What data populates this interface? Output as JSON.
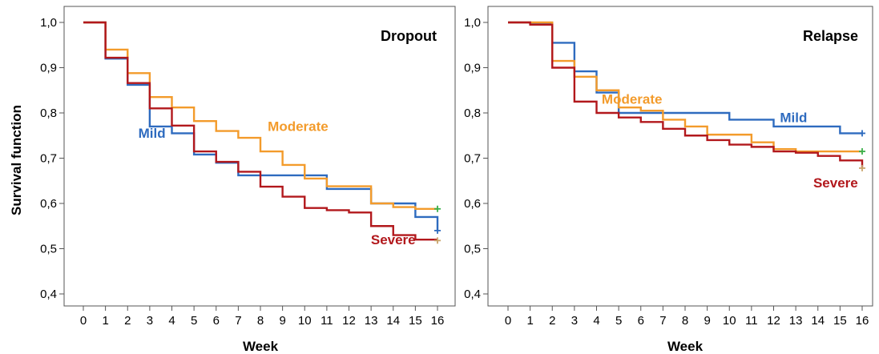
{
  "figure": {
    "ylabel": "Survival function"
  },
  "chart_data": [
    {
      "type": "line",
      "title": "Dropout",
      "xlabel": "Week",
      "ylabel": "Survival function",
      "xlim": [
        0,
        16
      ],
      "ylim": [
        0.4,
        1.0
      ],
      "x_ticks": [
        "0",
        "1",
        "2",
        "3",
        "4",
        "5",
        "6",
        "7",
        "8",
        "9",
        "10",
        "11",
        "12",
        "13",
        "14",
        "15",
        "16"
      ],
      "y_ticks": [
        "0,4",
        "0,5",
        "0,6",
        "0,7",
        "0,8",
        "0,9",
        "1,0"
      ],
      "y_tick_values": [
        0.4,
        0.5,
        0.6,
        0.7,
        0.8,
        0.9,
        1.0
      ],
      "grid": false,
      "series": [
        {
          "name": "Mild",
          "color": "#2e6bbf",
          "x": [
            0,
            1,
            2,
            3,
            4,
            5,
            6,
            7,
            8,
            9,
            10,
            11,
            12,
            13,
            14,
            15,
            16
          ],
          "y": [
            1.0,
            0.92,
            0.862,
            0.77,
            0.755,
            0.708,
            0.69,
            0.662,
            0.662,
            0.662,
            0.662,
            0.632,
            0.632,
            0.6,
            0.6,
            0.57,
            0.54
          ],
          "censor": {
            "x": 16,
            "y": 0.54,
            "color": "#2e6bbf"
          }
        },
        {
          "name": "Moderate",
          "color": "#f39b2b",
          "x": [
            0,
            1,
            2,
            3,
            4,
            5,
            6,
            7,
            8,
            9,
            10,
            11,
            12,
            13,
            14,
            15,
            16
          ],
          "y": [
            1.0,
            0.94,
            0.888,
            0.835,
            0.812,
            0.782,
            0.76,
            0.745,
            0.715,
            0.685,
            0.655,
            0.638,
            0.638,
            0.6,
            0.592,
            0.588,
            0.588
          ],
          "censor": {
            "x": 16,
            "y": 0.588,
            "color": "#3ab04a"
          }
        },
        {
          "name": "Severe",
          "color": "#b2181c",
          "x": [
            0,
            1,
            2,
            3,
            4,
            5,
            6,
            7,
            8,
            9,
            10,
            11,
            12,
            13,
            14,
            15,
            16
          ],
          "y": [
            1.0,
            0.922,
            0.866,
            0.81,
            0.772,
            0.715,
            0.692,
            0.67,
            0.637,
            0.615,
            0.59,
            0.585,
            0.58,
            0.55,
            0.53,
            0.52,
            0.52
          ],
          "censor": {
            "x": 16,
            "y": 0.518,
            "color": "#c9a46b"
          }
        }
      ],
      "annotations": [
        {
          "text": "Mild",
          "series": "Mild",
          "x": 3.1,
          "y": 0.745
        },
        {
          "text": "Moderate",
          "series": "Moderate",
          "x": 9.7,
          "y": 0.76
        },
        {
          "text": "Severe",
          "series": "Severe",
          "x": 14.0,
          "y": 0.51
        }
      ]
    },
    {
      "type": "line",
      "title": "Relapse",
      "xlabel": "Week",
      "ylabel": "",
      "xlim": [
        0,
        16
      ],
      "ylim": [
        0.4,
        1.0
      ],
      "x_ticks": [
        "0",
        "1",
        "2",
        "3",
        "4",
        "5",
        "6",
        "7",
        "8",
        "9",
        "10",
        "11",
        "12",
        "13",
        "14",
        "15",
        "16"
      ],
      "y_ticks": [
        "0,4",
        "0,5",
        "0,6",
        "0,7",
        "0,8",
        "0,9",
        "1,0"
      ],
      "y_tick_values": [
        0.4,
        0.5,
        0.6,
        0.7,
        0.8,
        0.9,
        1.0
      ],
      "grid": false,
      "series": [
        {
          "name": "Mild",
          "color": "#2e6bbf",
          "x": [
            0,
            1,
            2,
            3,
            4,
            5,
            6,
            7,
            8,
            9,
            10,
            11,
            12,
            13,
            14,
            15,
            16
          ],
          "y": [
            1.0,
            0.998,
            0.955,
            0.892,
            0.845,
            0.8,
            0.8,
            0.8,
            0.8,
            0.8,
            0.785,
            0.785,
            0.77,
            0.77,
            0.77,
            0.755,
            0.755
          ],
          "censor": {
            "x": 16,
            "y": 0.755,
            "color": "#2e6bbf"
          }
        },
        {
          "name": "Moderate",
          "color": "#f39b2b",
          "x": [
            0,
            1,
            2,
            3,
            4,
            5,
            6,
            7,
            8,
            9,
            10,
            11,
            12,
            13,
            14,
            15,
            16
          ],
          "y": [
            1.0,
            1.0,
            0.915,
            0.88,
            0.85,
            0.812,
            0.805,
            0.785,
            0.77,
            0.752,
            0.752,
            0.735,
            0.72,
            0.715,
            0.715,
            0.715,
            0.715
          ],
          "censor": {
            "x": 16,
            "y": 0.715,
            "color": "#3ab04a"
          }
        },
        {
          "name": "Severe",
          "color": "#b2181c",
          "x": [
            0,
            1,
            2,
            3,
            4,
            5,
            6,
            7,
            8,
            9,
            10,
            11,
            12,
            13,
            14,
            15,
            16
          ],
          "y": [
            1.0,
            0.995,
            0.9,
            0.825,
            0.8,
            0.79,
            0.78,
            0.765,
            0.75,
            0.74,
            0.73,
            0.725,
            0.715,
            0.712,
            0.705,
            0.695,
            0.68
          ],
          "censor": {
            "x": 16,
            "y": 0.678,
            "color": "#c9a46b"
          }
        }
      ],
      "annotations": [
        {
          "text": "Moderate",
          "series": "Moderate",
          "x": 5.6,
          "y": 0.82
        },
        {
          "text": "Mild",
          "series": "Mild",
          "x": 12.9,
          "y": 0.78
        },
        {
          "text": "Severe",
          "series": "Severe",
          "x": 14.8,
          "y": 0.635
        }
      ]
    }
  ]
}
